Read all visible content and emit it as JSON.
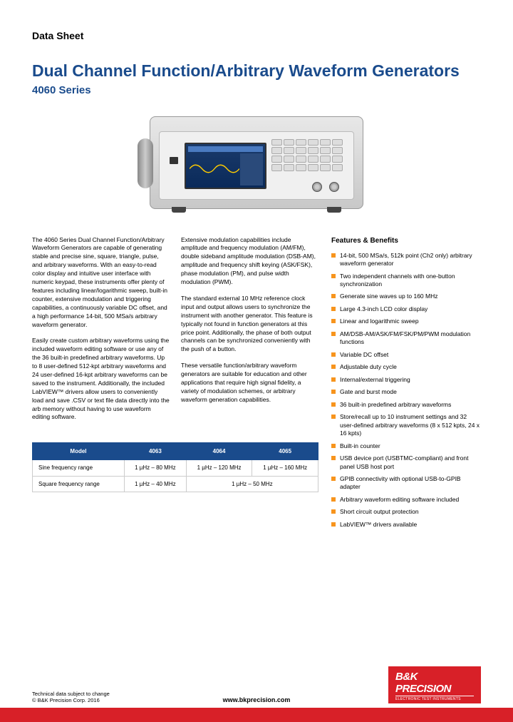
{
  "docType": "Data Sheet",
  "title": "Dual Channel Function/Arbitrary Waveform Generators",
  "subtitle": "4060 Series",
  "colors": {
    "titleBlue": "#1a4b8c",
    "bulletOrange": "#f7941d",
    "brandRed": "#d82028",
    "bodyText": "#000000"
  },
  "body": {
    "col1": {
      "p1": "The 4060 Series Dual Channel Function/Arbitrary Waveform Generators are capable of generating stable and precise sine, square, triangle, pulse, and arbitrary waveforms. With an easy-to-read color display and intuitive user interface with numeric keypad, these instruments offer plenty of features including linear/logarithmic sweep, built-in counter, extensive modulation and triggering capabilities, a continuously variable DC offset, and a high performance 14-bit, 500 MSa/s arbitrary waveform generator.",
      "p2": "Easily create custom arbitrary waveforms using the included waveform editing software or use any of the 36 built-in predefined arbitrary waveforms. Up to 8 user-defined 512-kpt arbitrary waveforms and 24 user-defined 16-kpt arbitrary waveforms can be saved to the instrument. Additionally, the included LabVIEW™ drivers allow users to conveniently load and save .CSV or text file data directly into the arb memory without having to use waveform editing software."
    },
    "col2": {
      "p1": "Extensive modulation capabilities include amplitude and frequency modulation (AM/FM), double sideband amplitude modulation (DSB-AM), amplitude and frequency shift keying (ASK/FSK), phase modulation (PM), and pulse width modulation (PWM).",
      "p2": "The standard external 10 MHz reference clock input and output allows users to synchronize the instrument with another generator. This feature is typically not found in function generators at this price point. Additionally, the phase of both output channels can be synchronized conveniently with the push of a button.",
      "p3": "These versatile function/arbitrary waveform generators are suitable for education and other applications that require high signal fidelity, a variety of modulation schemes, or arbitrary waveform generation capabilities."
    }
  },
  "featuresTitle": "Features & Benefits",
  "features": [
    "14-bit, 500 MSa/s, 512k point (Ch2 only) arbitrary waveform generator",
    "Two independent channels with one-button synchronization",
    "Generate sine waves up to 160 MHz",
    "Large 4.3-inch LCD color display",
    "Linear and logarithmic sweep",
    "AM/DSB-AM/ASK/FM/FSK/PM/PWM modulation functions",
    "Variable DC offset",
    "Adjustable duty cycle",
    "Internal/external triggering",
    "Gate and burst mode",
    "36 built-in predefined arbitrary waveforms",
    "Store/recall up to 10 instrument settings and 32 user-defined arbitrary waveforms (8 x 512 kpts, 24 x 16 kpts)",
    "Built-in counter",
    "USB device port (USBTMC-compliant) and front panel USB host port",
    "GPIB connectivity with optional USB-to-GPIB adapter",
    "Arbitrary waveform editing software included",
    "Short circuit output protection",
    "LabVIEW™ drivers available"
  ],
  "table": {
    "headers": [
      "Model",
      "4063",
      "4064",
      "4065"
    ],
    "rows": [
      {
        "label": "Sine frequency range",
        "c1": "1 µHz – 80 MHz",
        "c2": "1 µHz – 120 MHz",
        "c3": "1 µHz – 160 MHz"
      },
      {
        "label": "Square frequency range",
        "c1": "1 µHz – 40 MHz",
        "c23": "1 µHz – 50 MHz"
      }
    ]
  },
  "footer": {
    "disclaimer1": "Technical data subject to change",
    "disclaimer2": "© B&K Precision Corp. 2016",
    "url": "www.bkprecision.com",
    "logoMain": "B&K PRECISION",
    "logoSub": "ELECTRONIC TEST INSTRUMENTS"
  }
}
